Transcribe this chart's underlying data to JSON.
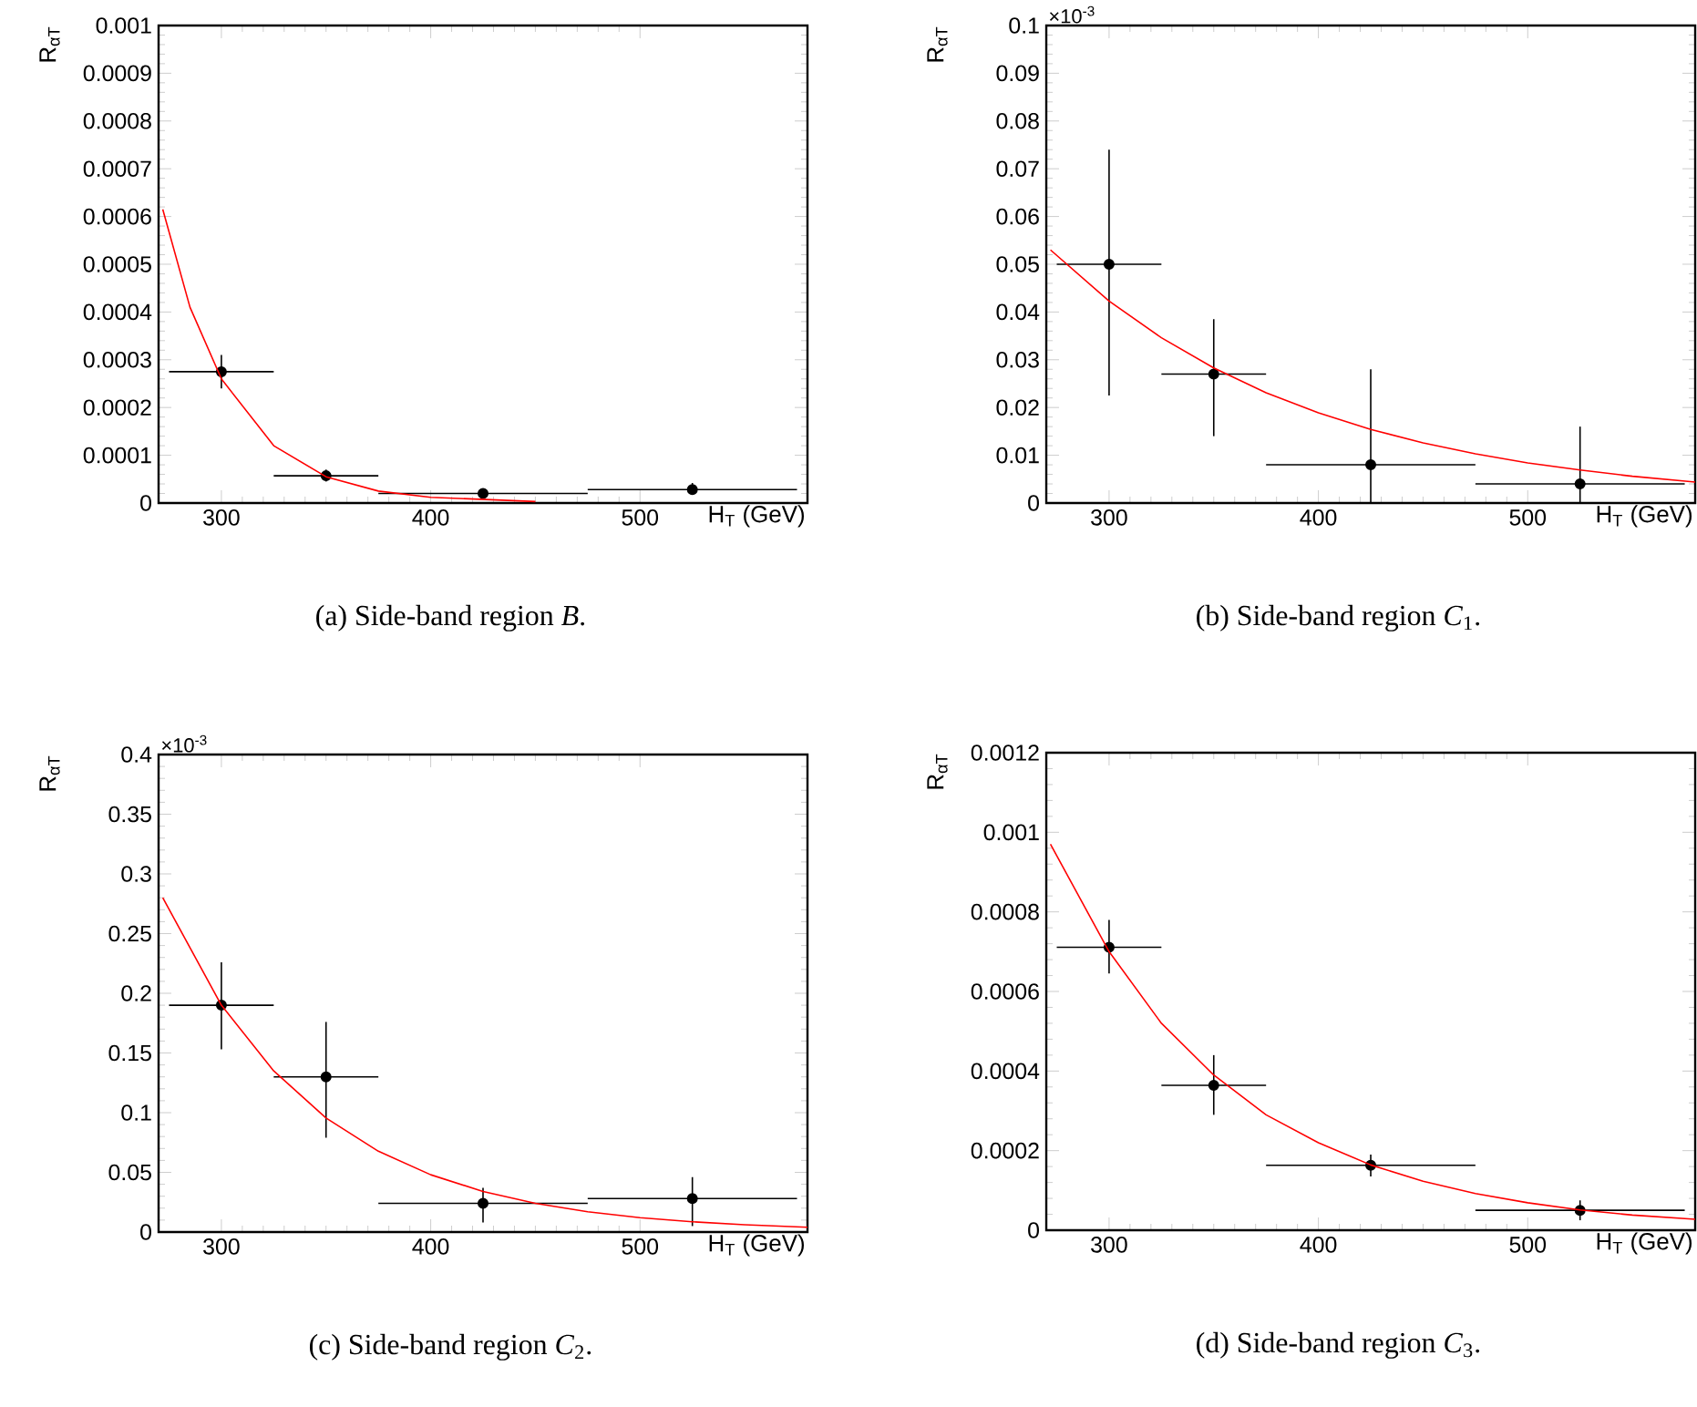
{
  "chart_data": [
    {
      "type": "scatter",
      "xlabel": "H$_{T}$ (GeV)",
      "ylabel": "R$_{αT}$",
      "annotations": [
        "(a) Side-band region *B*."
      ],
      "xlim": [
        270,
        580
      ],
      "ylim": [
        0,
        0.001
      ],
      "xticks": [
        300,
        400,
        500
      ],
      "yticks": [
        0,
        0.0001,
        0.0002,
        0.0003,
        0.0004,
        0.0005,
        0.0006,
        0.0007,
        0.0008,
        0.0009,
        0.001
      ],
      "series": [
        {
          "marker": "circle",
          "color": "#000000",
          "x": [
            300,
            350,
            425,
            525
          ],
          "values": [
            0.000275,
            5.7e-05,
            2e-05,
            2.8e-05
          ],
          "errors": [
            [
              0.00024,
              0.00031
            ],
            [
              4.5e-05,
              7e-05
            ],
            [
              1.5e-05,
              2.5e-05
            ],
            [
              1.8e-05,
              4.2e-05
            ]
          ],
          "xerrors": [
            25,
            25,
            50,
            50
          ]
        },
        {
          "type": "line",
          "marker": "none",
          "color": "#ff0000",
          "x": [
            272,
            285,
            300,
            325,
            350,
            375,
            400,
            450
          ],
          "values": [
            0.000615,
            0.00041,
            0.00026,
            0.00012,
            5.5e-05,
            2.5e-05,
            1.2e-05,
            3e-06
          ]
        }
      ]
    },
    {
      "type": "scatter",
      "xlabel": "H$_{T}$ (GeV)",
      "ylabel": "R$_{αT}$",
      "annotations": [
        "(b) Side-band region *C*$_{1}$.",
        "×10$^{-3}$"
      ],
      "xlim": [
        270,
        580
      ],
      "ylim": [
        0,
        0.1
      ],
      "xticks": [
        300,
        400,
        500
      ],
      "yticks": [
        0,
        0.01,
        0.02,
        0.03,
        0.04,
        0.05,
        0.06,
        0.07,
        0.08,
        0.09,
        0.1
      ],
      "series": [
        {
          "marker": "circle",
          "color": "#000000",
          "x": [
            300,
            350,
            425,
            525
          ],
          "values": [
            0.05,
            0.027,
            0.008,
            0.004
          ],
          "errors": [
            [
              0.0225,
              0.074
            ],
            [
              0.014,
              0.0385
            ],
            [
              0,
              0.028
            ],
            [
              0,
              0.016
            ]
          ],
          "xerrors": [
            25,
            25,
            50,
            50
          ]
        },
        {
          "type": "line",
          "marker": "none",
          "color": "#ff0000",
          "x": [
            272,
            300,
            325,
            350,
            375,
            400,
            425,
            450,
            475,
            500,
            525,
            550,
            580
          ],
          "values": [
            0.053,
            0.0423,
            0.0346,
            0.0283,
            0.0231,
            0.0189,
            0.0154,
            0.0126,
            0.0103,
            0.0084,
            0.0069,
            0.0056,
            0.0044
          ]
        }
      ]
    },
    {
      "type": "scatter",
      "xlabel": "H$_{T}$ (GeV)",
      "ylabel": "R$_{αT}$",
      "annotations": [
        "(c) Side-band region *C*$_{2}$.",
        "×10$^{-3}$"
      ],
      "xlim": [
        270,
        580
      ],
      "ylim": [
        0,
        0.4
      ],
      "xticks": [
        300,
        400,
        500
      ],
      "yticks": [
        0,
        0.05,
        0.1,
        0.15,
        0.2,
        0.25,
        0.3,
        0.35,
        0.4
      ],
      "series": [
        {
          "marker": "circle",
          "color": "#000000",
          "x": [
            300,
            350,
            425,
            525
          ],
          "values": [
            0.19,
            0.13,
            0.024,
            0.028
          ],
          "errors": [
            [
              0.153,
              0.226
            ],
            [
              0.079,
              0.176
            ],
            [
              0.008,
              0.037
            ],
            [
              0.005,
              0.046
            ]
          ],
          "xerrors": [
            25,
            25,
            50,
            50
          ]
        },
        {
          "type": "line",
          "marker": "none",
          "color": "#ff0000",
          "x": [
            272,
            300,
            325,
            350,
            375,
            400,
            425,
            450,
            475,
            500,
            525,
            550,
            580
          ],
          "values": [
            0.28,
            0.19,
            0.135,
            0.0955,
            0.0677,
            0.048,
            0.034,
            0.024,
            0.017,
            0.012,
            0.0086,
            0.0061,
            0.004
          ]
        }
      ]
    },
    {
      "type": "scatter",
      "xlabel": "H$_{T}$ (GeV)",
      "ylabel": "R$_{αT}$",
      "annotations": [
        "(d) Side-band region *C*$_{3}$."
      ],
      "xlim": [
        270,
        580
      ],
      "ylim": [
        0,
        0.0012
      ],
      "xticks": [
        300,
        400,
        500
      ],
      "yticks": [
        0,
        0.0002,
        0.0004,
        0.0006,
        0.0008,
        0.001,
        0.0012
      ],
      "series": [
        {
          "marker": "circle",
          "color": "#000000",
          "x": [
            300,
            350,
            425,
            525
          ],
          "values": [
            0.000711,
            0.000364,
            0.000163,
            5e-05
          ],
          "errors": [
            [
              0.000645,
              0.00078
            ],
            [
              0.00029,
              0.00044
            ],
            [
              0.000135,
              0.00019
            ],
            [
              2.5e-05,
              7.5e-05
            ]
          ],
          "xerrors": [
            25,
            25,
            50,
            50
          ]
        },
        {
          "type": "line",
          "marker": "none",
          "color": "#ff0000",
          "x": [
            272,
            300,
            325,
            350,
            375,
            400,
            425,
            450,
            475,
            500,
            525,
            550,
            580
          ],
          "values": [
            0.00097,
            0.0007,
            0.00052,
            0.00039,
            0.00029,
            0.00022,
            0.000164,
            0.000123,
            9.2e-05,
            6.9e-05,
            5.1e-05,
            3.8e-05,
            2.74e-05
          ]
        }
      ]
    }
  ]
}
